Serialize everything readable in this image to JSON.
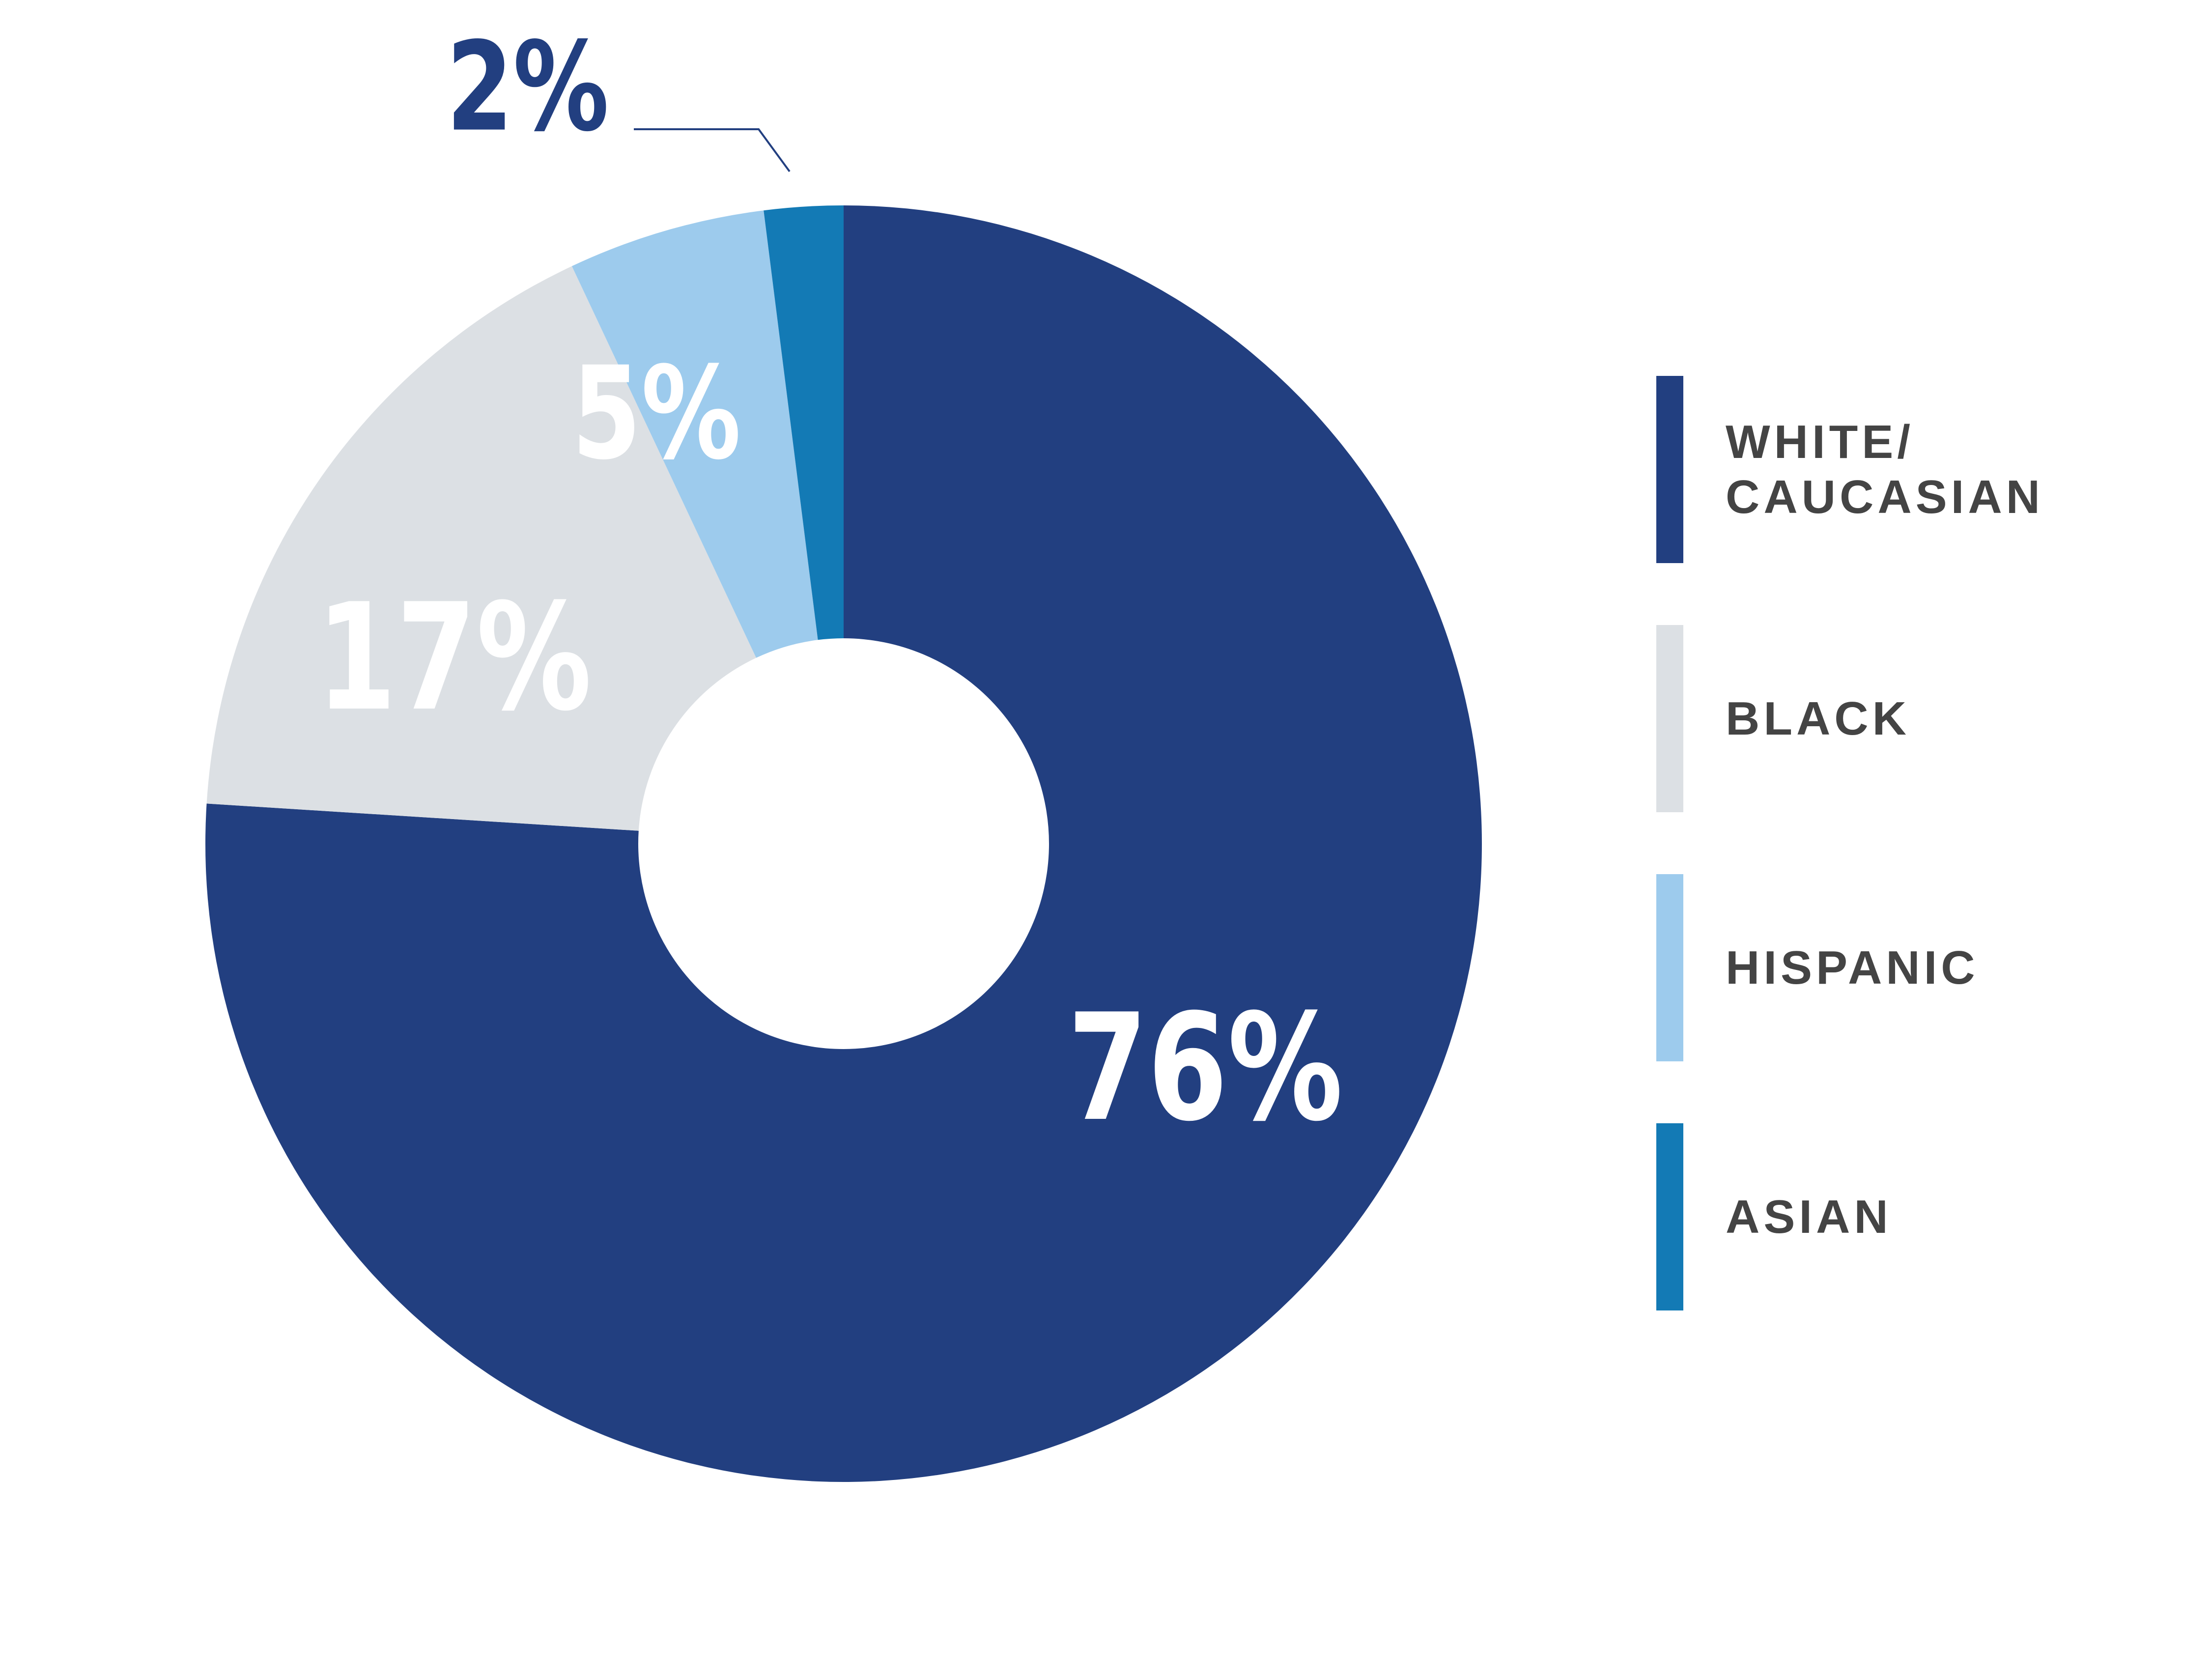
{
  "chart_data": {
    "type": "donut",
    "categories": [
      "WHITE/ CAUCASIAN",
      "BLACK",
      "HISPANIC",
      "ASIAN"
    ],
    "values": [
      76,
      17,
      5,
      2
    ],
    "value_labels": [
      "76%",
      "17%",
      "5%",
      "2%"
    ],
    "colors": [
      "#223f80",
      "#dce0e4",
      "#9dcbed",
      "#137ab5"
    ],
    "legend": "right"
  }
}
